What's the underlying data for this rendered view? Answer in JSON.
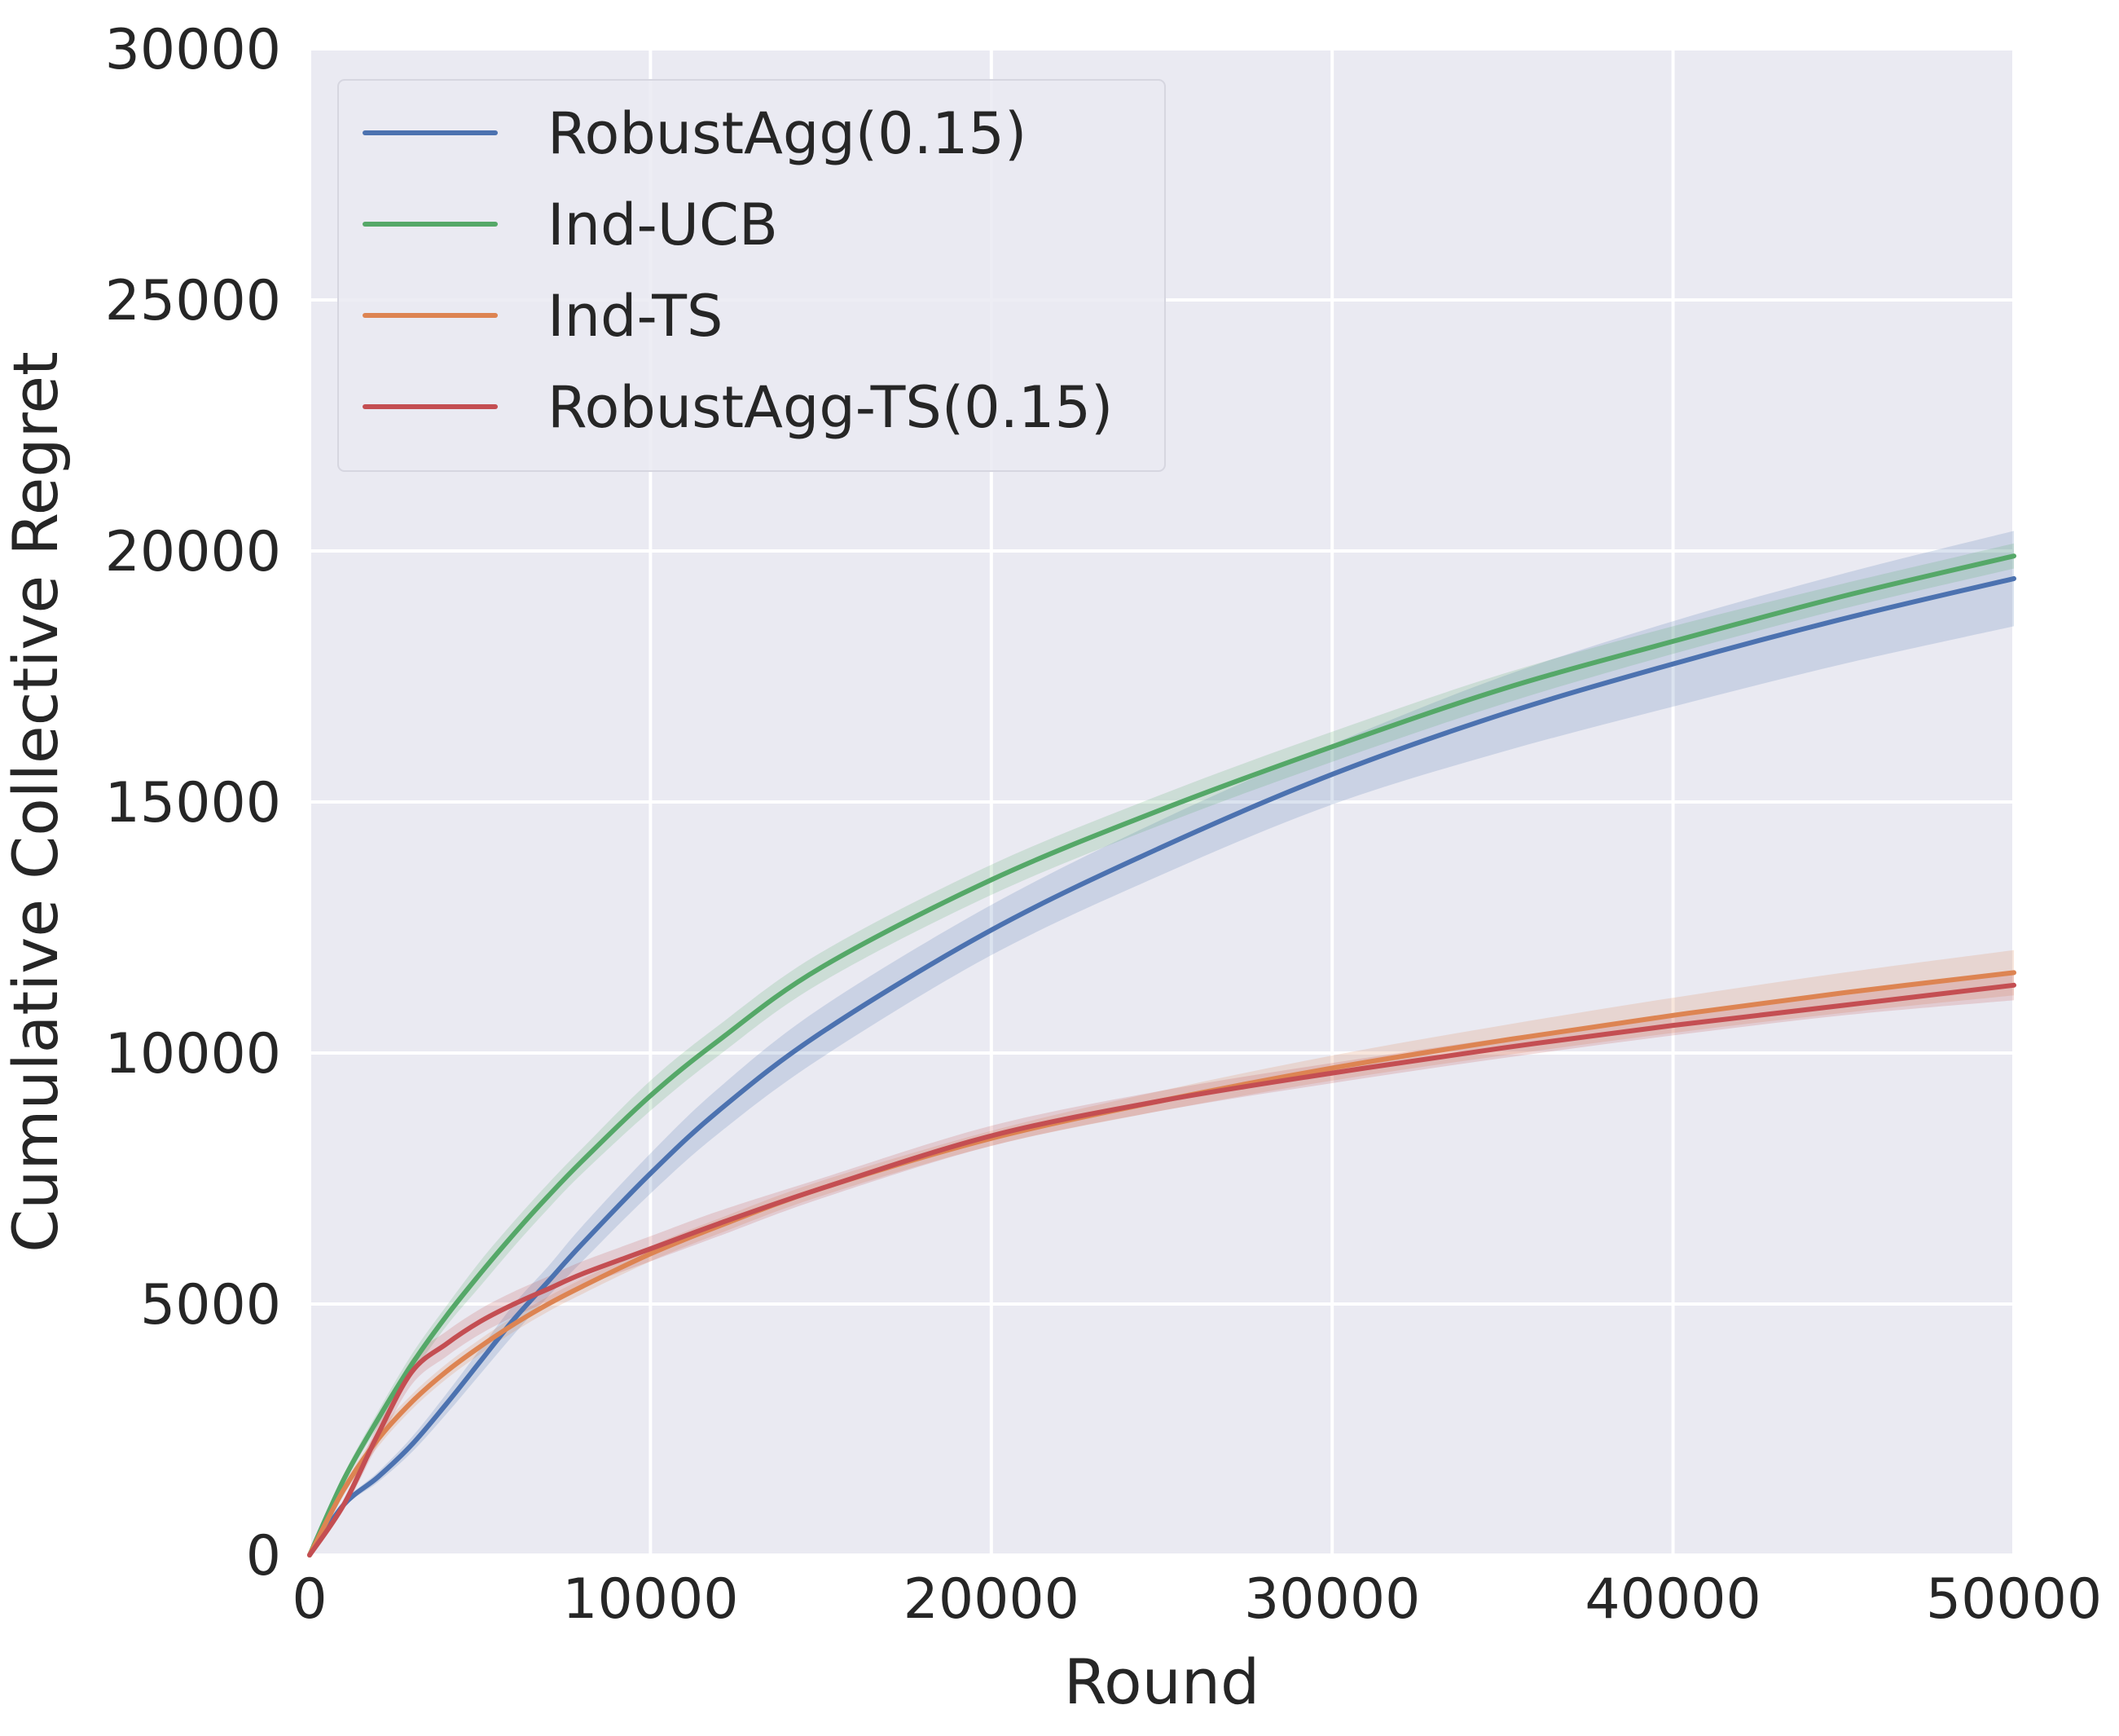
{
  "chart_data": {
    "type": "line",
    "title": "",
    "xlabel": "Round",
    "ylabel": "Cumulative Collective Regret",
    "xlim": [
      0,
      50000
    ],
    "ylim": [
      0,
      30000
    ],
    "xticks": [
      0,
      10000,
      20000,
      30000,
      40000,
      50000
    ],
    "yticks": [
      0,
      5000,
      10000,
      15000,
      20000,
      25000,
      30000
    ],
    "xtick_labels": [
      "0",
      "10000",
      "20000",
      "30000",
      "40000",
      "50000"
    ],
    "ytick_labels": [
      "0",
      "5000",
      "10000",
      "15000",
      "20000",
      "25000",
      "30000"
    ],
    "grid": true,
    "legend_position": "upper-left",
    "x": [
      0,
      1000,
      2000,
      3000,
      4000,
      5000,
      6000,
      7000,
      8000,
      10000,
      12000,
      15000,
      20000,
      25000,
      30000,
      35000,
      40000,
      45000,
      50000
    ],
    "series": [
      {
        "name": "RobustAgg(0.15)",
        "color": "#4c72b0",
        "values": [
          0,
          1000,
          1550,
          2200,
          3000,
          3850,
          4700,
          5450,
          6200,
          7600,
          8850,
          10400,
          12450,
          14100,
          15550,
          16750,
          17750,
          18650,
          19450
        ],
        "lower": [
          0,
          950,
          1450,
          2050,
          2800,
          3600,
          4400,
          5150,
          5850,
          7200,
          8400,
          9900,
          11950,
          13550,
          14950,
          16000,
          16900,
          17750,
          18500
        ],
        "upper": [
          0,
          1050,
          1650,
          2350,
          3200,
          4100,
          5000,
          5750,
          6550,
          8000,
          9300,
          10900,
          12950,
          14650,
          16150,
          17500,
          18600,
          19550,
          20400
        ]
      },
      {
        "name": "Ind-UCB",
        "color": "#55a868",
        "values": [
          0,
          1500,
          2700,
          3800,
          4750,
          5600,
          6400,
          7150,
          7850,
          9150,
          10250,
          11700,
          13450,
          14850,
          16100,
          17250,
          18200,
          19100,
          19900
        ],
        "lower": [
          0,
          1400,
          2550,
          3600,
          4550,
          5350,
          6150,
          6900,
          7600,
          8850,
          9950,
          11400,
          13150,
          14550,
          15800,
          16950,
          17950,
          18850,
          19650
        ],
        "upper": [
          0,
          1600,
          2850,
          4000,
          4950,
          5850,
          6650,
          7400,
          8100,
          9450,
          10550,
          12000,
          13750,
          15150,
          16400,
          17550,
          18500,
          19350,
          20150
        ]
      },
      {
        "name": "Ind-TS",
        "color": "#dd8452",
        "values": [
          0,
          1300,
          2300,
          3050,
          3650,
          4150,
          4600,
          5000,
          5350,
          6000,
          6550,
          7300,
          8300,
          9050,
          9700,
          10250,
          10750,
          11200,
          11600
        ],
        "lower": [
          0,
          1200,
          2150,
          2900,
          3500,
          4000,
          4450,
          4850,
          5200,
          5850,
          6400,
          7150,
          8150,
          8850,
          9450,
          9950,
          10400,
          10800,
          11150
        ],
        "upper": [
          0,
          1400,
          2450,
          3200,
          3800,
          4300,
          4750,
          5150,
          5500,
          6150,
          6700,
          7450,
          8450,
          9250,
          9950,
          10550,
          11100,
          11600,
          12050
        ]
      },
      {
        "name": "RobustAgg-TS(0.15)",
        "color": "#c44e52",
        "values": [
          0,
          1000,
          2400,
          3650,
          4200,
          4650,
          5000,
          5300,
          5600,
          6100,
          6600,
          7300,
          8350,
          9050,
          9600,
          10100,
          10550,
          10950,
          11350
        ],
        "lower": [
          0,
          900,
          2200,
          3400,
          3950,
          4400,
          4750,
          5050,
          5350,
          5850,
          6350,
          7100,
          8150,
          8850,
          9400,
          9900,
          10350,
          10750,
          11050
        ],
        "upper": [
          0,
          1100,
          2600,
          3900,
          4450,
          4900,
          5250,
          5550,
          5850,
          6350,
          6850,
          7500,
          8550,
          9250,
          9800,
          10300,
          10750,
          11150,
          11600
        ]
      }
    ]
  }
}
